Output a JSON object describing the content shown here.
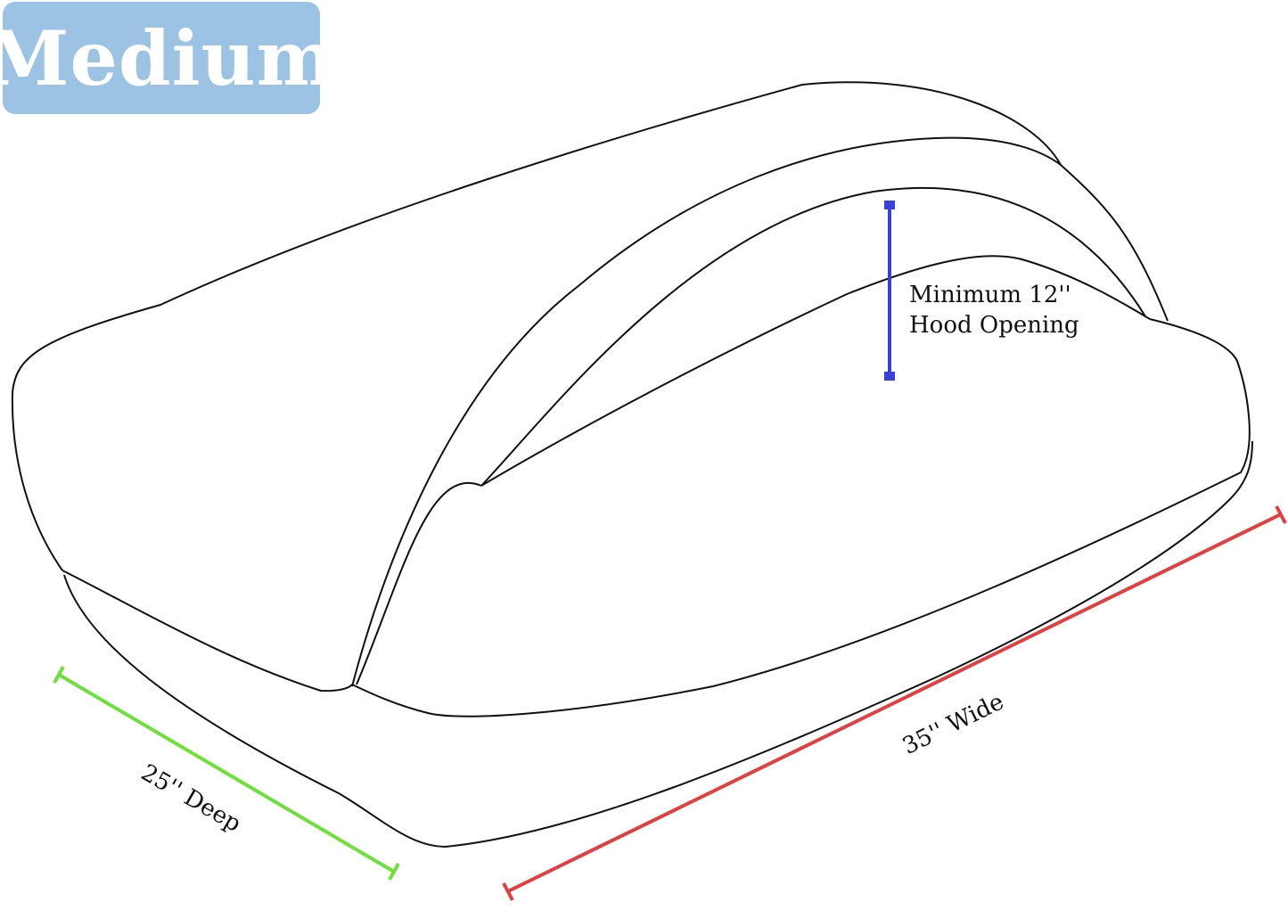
{
  "size_badge": {
    "label": "Medium",
    "color": "#9dc3e4"
  },
  "dimensions": {
    "hood": {
      "line1": "Minimum 12''",
      "line2": "Hood Opening",
      "color": "#3b3fdc"
    },
    "depth": {
      "label": "25'' Deep",
      "color": "#6ee03a"
    },
    "width": {
      "label": "35'' Wide",
      "color": "#e04040"
    }
  }
}
